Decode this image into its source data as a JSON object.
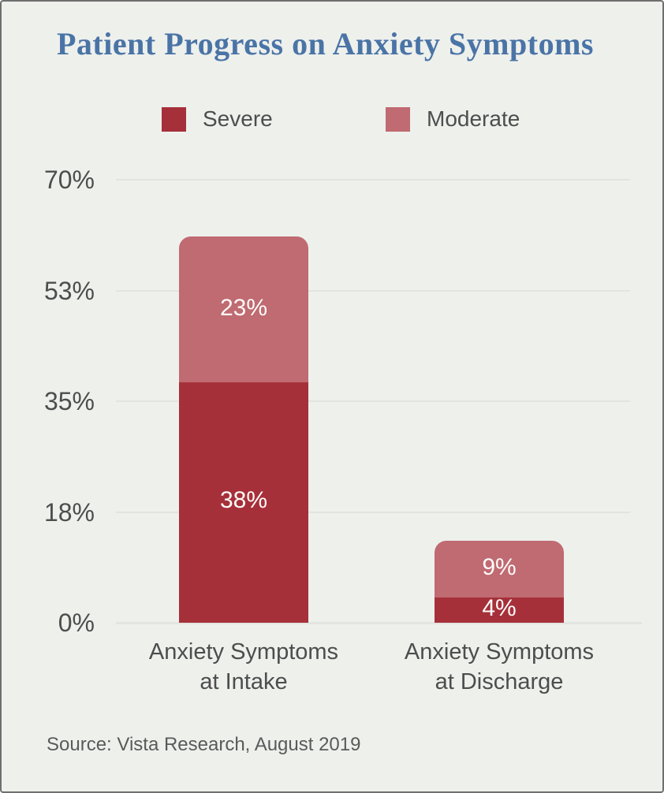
{
  "title": "Patient Progress on Anxiety Symptoms",
  "legend": [
    {
      "label": "Severe",
      "color": "#a6303a"
    },
    {
      "label": "Moderate",
      "color": "#c06a71"
    }
  ],
  "source": "Source: Vista Research, August 2019",
  "colors": {
    "background": "#eef0ec",
    "border": "#6f6f6f",
    "title": "#4a74a6",
    "text": "#4d4d4d",
    "gridline": "#e2e4df",
    "bar_label": "#fdfcfa"
  },
  "chart_data": {
    "type": "bar",
    "stacked": true,
    "title": "Patient Progress on Anxiety Symptoms",
    "categories": [
      "Anxiety Symptoms\nat Intake",
      "Anxiety Symptoms\nat Discharge"
    ],
    "series": [
      {
        "name": "Severe",
        "color": "#a6303a",
        "values": [
          38,
          4
        ],
        "labels": [
          "38%",
          "4%"
        ]
      },
      {
        "name": "Moderate",
        "color": "#c06a71",
        "values": [
          23,
          9
        ],
        "labels": [
          "23%",
          "9%"
        ]
      }
    ],
    "totals": [
      61,
      13
    ],
    "xlabel": "",
    "ylabel": "",
    "ylim": [
      0,
      70
    ],
    "y_ticks": [
      {
        "label": "70%",
        "value": 70
      },
      {
        "label": "53%",
        "value": 52.5
      },
      {
        "label": "35%",
        "value": 35
      },
      {
        "label": "18%",
        "value": 17.5
      },
      {
        "label": "0%",
        "value": 0
      }
    ],
    "grid": true,
    "legend_position": "top",
    "annotation": "Source: Vista Research, August 2019"
  }
}
